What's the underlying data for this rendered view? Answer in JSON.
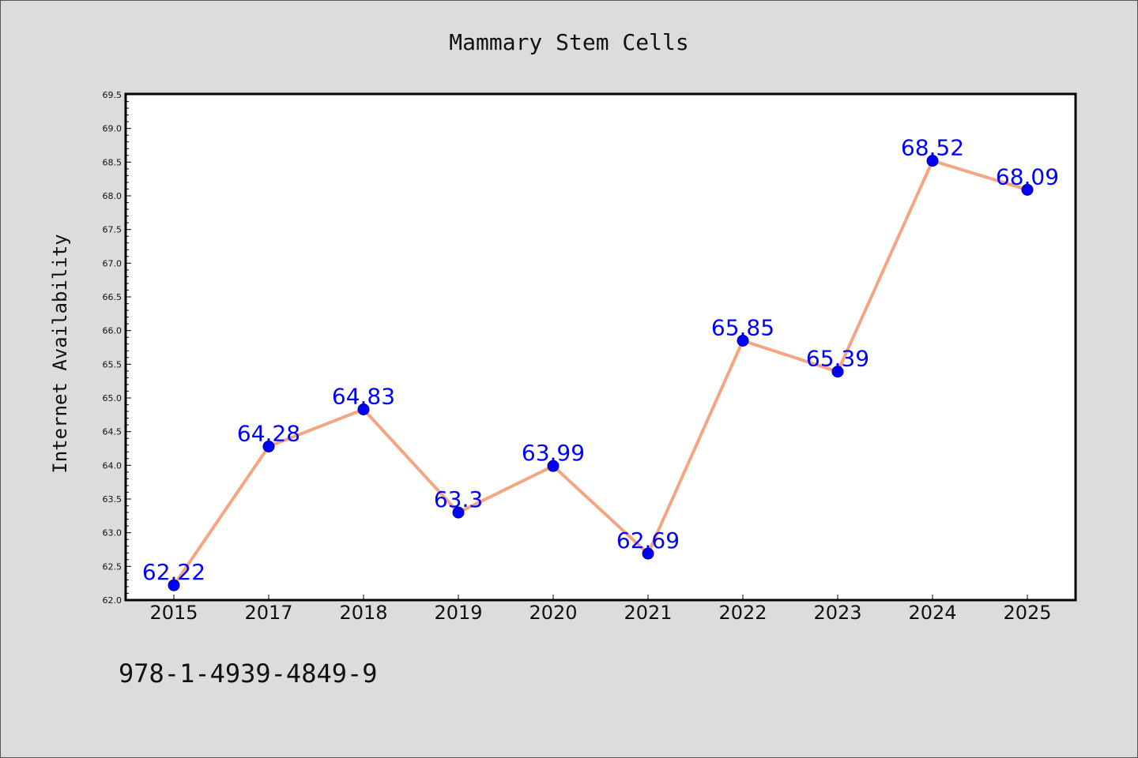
{
  "chart_data": {
    "type": "line",
    "title": "Mammary Stem Cells",
    "xlabel": "",
    "ylabel": "Internet Availability",
    "categories": [
      "2015",
      "2017",
      "2018",
      "2019",
      "2020",
      "2021",
      "2022",
      "2023",
      "2024",
      "2025"
    ],
    "series": [
      {
        "values": [
          62.22,
          64.28,
          64.83,
          63.3,
          63.99,
          62.69,
          65.85,
          65.39,
          68.52,
          68.09
        ],
        "data_labels": [
          "62.22",
          "64.28",
          "64.83",
          "63.3",
          "63.99",
          "62.69",
          "65.85",
          "65.39",
          "68.52",
          "68.09"
        ]
      }
    ],
    "ylim": [
      62.0,
      69.5
    ],
    "yticks": [
      "62.0",
      "62.5",
      "63.0",
      "63.5",
      "64.0",
      "64.5",
      "65.0",
      "65.5",
      "66.0",
      "66.5",
      "67.0",
      "67.5",
      "68.0",
      "68.5",
      "69.0",
      "69.5"
    ],
    "grid": false,
    "colors": {
      "line": "#f4a582",
      "marker": "#0000ff",
      "marker_edge": "#000080",
      "data_label": "#0000ff"
    }
  },
  "footer": {
    "code": "978-1-4939-4849-9"
  }
}
